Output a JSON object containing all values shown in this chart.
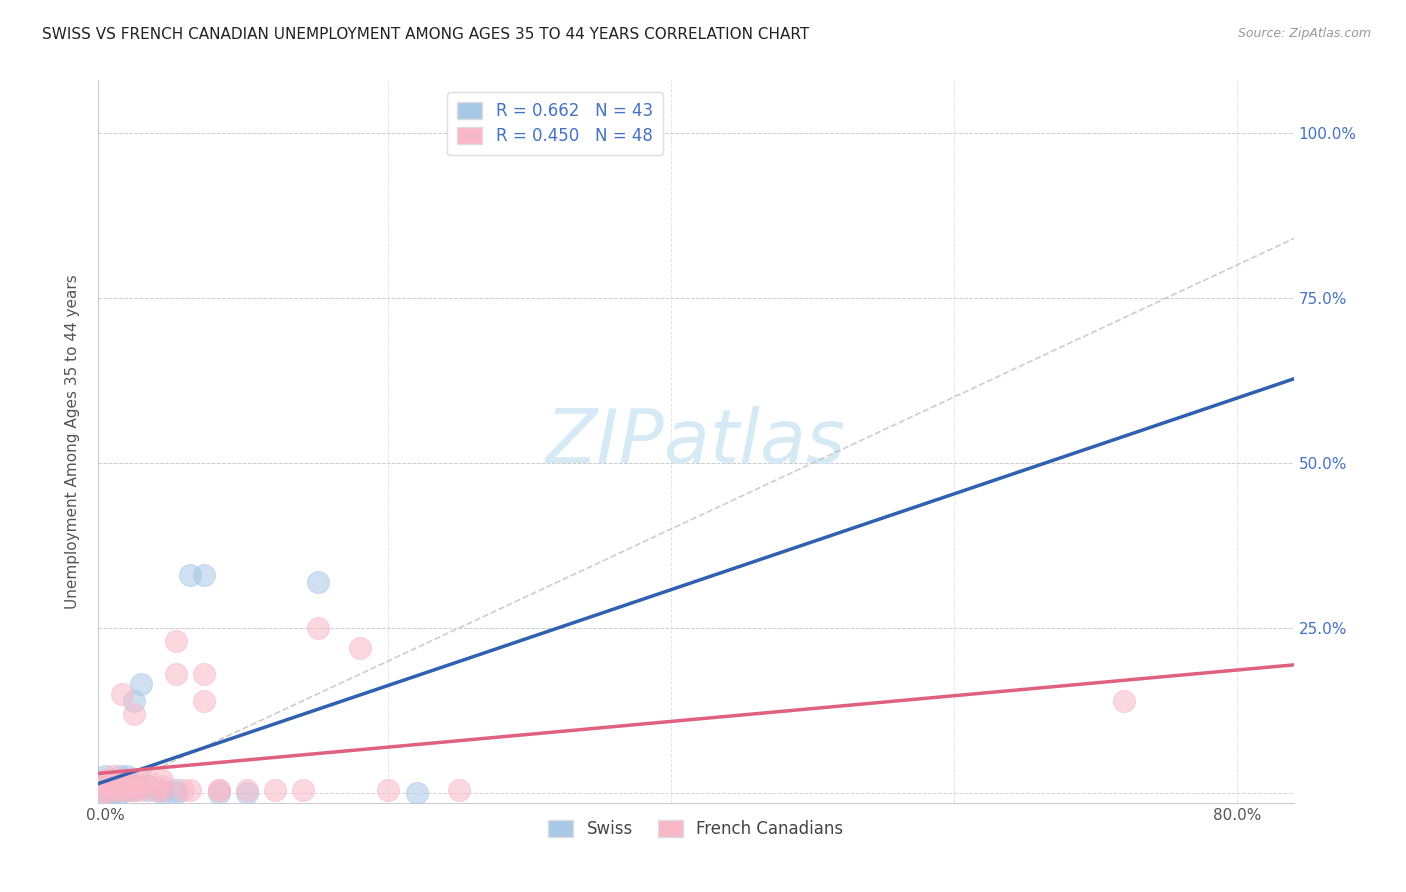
{
  "title": "SWISS VS FRENCH CANADIAN UNEMPLOYMENT AMONG AGES 35 TO 44 YEARS CORRELATION CHART",
  "source": "Source: ZipAtlas.com",
  "ylabel_label": "Unemployment Among Ages 35 to 44 years",
  "xlim": [
    -0.5,
    84.0
  ],
  "ylim": [
    -1.5,
    108.0
  ],
  "swiss_R": 0.662,
  "swiss_N": 43,
  "fc_R": 0.45,
  "fc_N": 48,
  "swiss_color": "#a8c8e8",
  "fc_color": "#f9b8c8",
  "swiss_line_color": "#3060b0",
  "fc_line_color": "#e06080",
  "ref_line_color": "#c0c0c0",
  "legend_label_swiss": "Swiss",
  "legend_label_fc": "French Canadians",
  "swiss_x": [
    0.0,
    0.0,
    0.0,
    0.0,
    0.0,
    0.0,
    0.5,
    0.5,
    0.5,
    0.5,
    0.5,
    0.7,
    0.7,
    0.7,
    0.8,
    0.8,
    1.0,
    1.0,
    1.0,
    1.0,
    1.0,
    1.0,
    1.5,
    1.5,
    1.5,
    1.5,
    2.0,
    2.0,
    2.0,
    2.5,
    2.5,
    3.0,
    3.0,
    4.0,
    4.0,
    5.0,
    5.0,
    6.0,
    7.0,
    8.0,
    10.0,
    15.0,
    22.0
  ],
  "swiss_y": [
    0.0,
    0.5,
    1.0,
    1.5,
    2.0,
    2.5,
    0.0,
    1.0,
    2.0,
    0.5,
    1.5,
    0.5,
    1.0,
    1.5,
    1.0,
    1.5,
    0.0,
    0.5,
    1.0,
    1.5,
    2.0,
    2.5,
    0.5,
    1.0,
    1.5,
    2.5,
    0.5,
    1.0,
    14.0,
    1.0,
    16.5,
    0.5,
    1.0,
    0.0,
    0.5,
    0.0,
    0.5,
    33.0,
    33.0,
    0.0,
    0.0,
    32.0,
    0.0
  ],
  "fc_x": [
    0.0,
    0.0,
    0.0,
    0.0,
    0.0,
    0.5,
    0.5,
    0.5,
    0.5,
    0.5,
    0.7,
    0.7,
    1.0,
    1.0,
    1.0,
    1.0,
    1.2,
    1.2,
    1.5,
    1.5,
    1.5,
    1.5,
    2.0,
    2.0,
    2.5,
    2.5,
    2.5,
    3.0,
    3.5,
    4.0,
    4.0,
    4.0,
    5.0,
    5.0,
    5.5,
    6.0,
    7.0,
    7.0,
    8.0,
    8.0,
    10.0,
    12.0,
    14.0,
    15.0,
    18.0,
    20.0,
    25.0,
    72.0
  ],
  "fc_y": [
    0.0,
    0.5,
    1.0,
    2.0,
    1.5,
    0.5,
    1.0,
    1.5,
    2.0,
    2.5,
    1.0,
    1.5,
    0.5,
    1.0,
    1.5,
    2.0,
    1.0,
    15.0,
    0.5,
    1.0,
    1.5,
    2.0,
    0.5,
    12.0,
    0.5,
    1.0,
    2.0,
    2.0,
    0.5,
    0.5,
    1.0,
    2.0,
    18.0,
    23.0,
    0.5,
    0.5,
    14.0,
    18.0,
    0.5,
    0.5,
    0.5,
    0.5,
    0.5,
    25.0,
    22.0,
    0.5,
    0.5,
    14.0
  ],
  "background_color": "#ffffff",
  "grid_color": "#cccccc",
  "ytick_color": "#4472c4",
  "xtick_color": "#555555",
  "ylabel_color": "#555555"
}
